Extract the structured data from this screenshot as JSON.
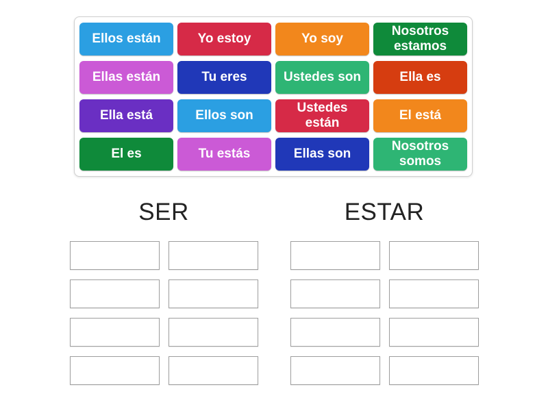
{
  "tiles": [
    {
      "label": "Ellos están",
      "color": "#2b9fe2"
    },
    {
      "label": "Yo estoy",
      "color": "#d62a47"
    },
    {
      "label": "Yo soy",
      "color": "#f2871c"
    },
    {
      "label": "Nosotros estamos",
      "color": "#0f8a3a"
    },
    {
      "label": "Ellas están",
      "color": "#cb5ad6"
    },
    {
      "label": "Tu eres",
      "color": "#2038b8"
    },
    {
      "label": "Ustedes son",
      "color": "#2eb574"
    },
    {
      "label": "Ella es",
      "color": "#d63d10"
    },
    {
      "label": "Ella está",
      "color": "#6a2fc3"
    },
    {
      "label": "Ellos son",
      "color": "#2b9fe2"
    },
    {
      "label": "Ustedes están",
      "color": "#d62a47"
    },
    {
      "label": "El está",
      "color": "#f2871c"
    },
    {
      "label": "El es",
      "color": "#0f8a3a"
    },
    {
      "label": "Tu estás",
      "color": "#cb5ad6"
    },
    {
      "label": "Ellas son",
      "color": "#2038b8"
    },
    {
      "label": "Nosotros somos",
      "color": "#2eb574"
    }
  ],
  "groups": [
    {
      "title": "SER"
    },
    {
      "title": "ESTAR"
    }
  ],
  "slot_count_per_group": 8,
  "colors": {
    "page_background": "#ffffff",
    "panel_border": "#cfcfcf",
    "slot_border": "#9e9e9e",
    "title_text": "#232323",
    "tile_text": "#ffffff"
  }
}
